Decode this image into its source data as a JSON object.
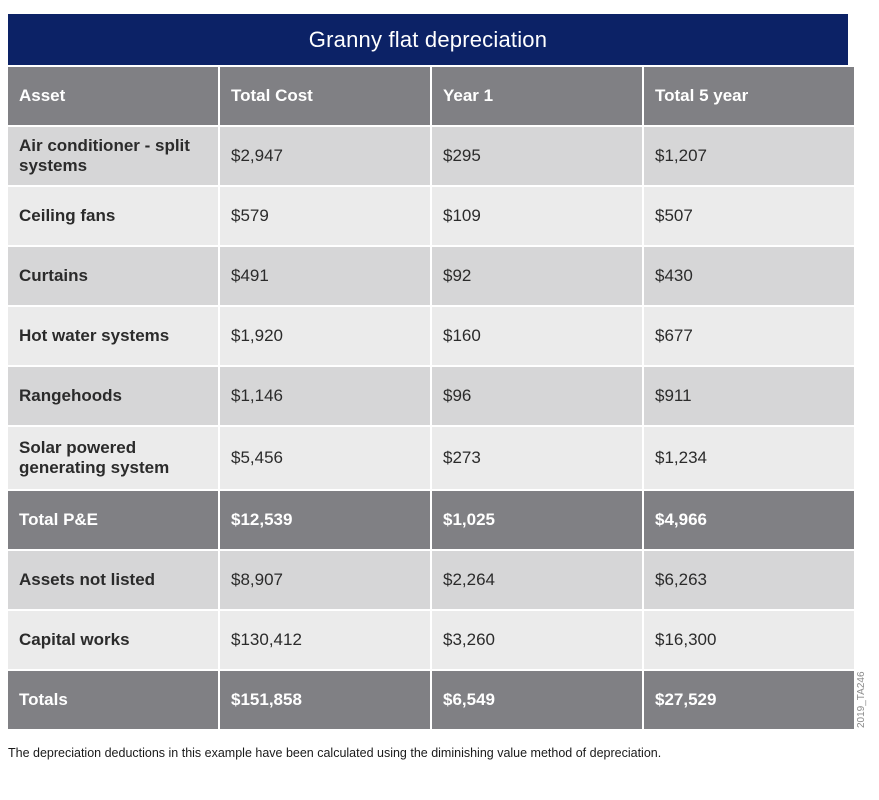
{
  "title": "Granny flat depreciation",
  "table": {
    "headers": [
      "Asset",
      "Total Cost",
      "Year 1",
      "Total 5 year"
    ],
    "rows": [
      {
        "asset": "Air conditioner - split systems",
        "total_cost": "$2,947",
        "year_1": "$295",
        "total_5_year": "$1,207"
      },
      {
        "asset": "Ceiling fans",
        "total_cost": "$579",
        "year_1": "$109",
        "total_5_year": "$507"
      },
      {
        "asset": "Curtains",
        "total_cost": "$491",
        "year_1": "$92",
        "total_5_year": "$430"
      },
      {
        "asset": "Hot water systems",
        "total_cost": "$1,920",
        "year_1": "$160",
        "total_5_year": "$677"
      },
      {
        "asset": "Rangehoods",
        "total_cost": "$1,146",
        "year_1": "$96",
        "total_5_year": "$911"
      },
      {
        "asset": "Solar powered generating system",
        "total_cost": "$5,456",
        "year_1": "$273",
        "total_5_year": "$1,234"
      }
    ],
    "total_pe": {
      "asset": "Total P&E",
      "total_cost": "$12,539",
      "year_1": "$1,025",
      "total_5_year": "$4,966"
    },
    "extra_rows": [
      {
        "asset": "Assets not listed",
        "total_cost": "$8,907",
        "year_1": "$2,264",
        "total_5_year": "$6,263"
      },
      {
        "asset": "Capital works",
        "total_cost": "$130,412",
        "year_1": "$3,260",
        "total_5_year": "$16,300"
      }
    ],
    "totals": {
      "asset": "Totals",
      "total_cost": "$151,858",
      "year_1": "$6,549",
      "total_5_year": "$27,529"
    }
  },
  "footnote": "The depreciation deductions in this example have been calculated using the diminishing value method of depreciation.",
  "ref_code": "2019_TA246",
  "colors": {
    "title_background": "#0c2266",
    "header_background": "#808084",
    "row_dark": "#d6d6d7",
    "row_light": "#ebebeb"
  }
}
